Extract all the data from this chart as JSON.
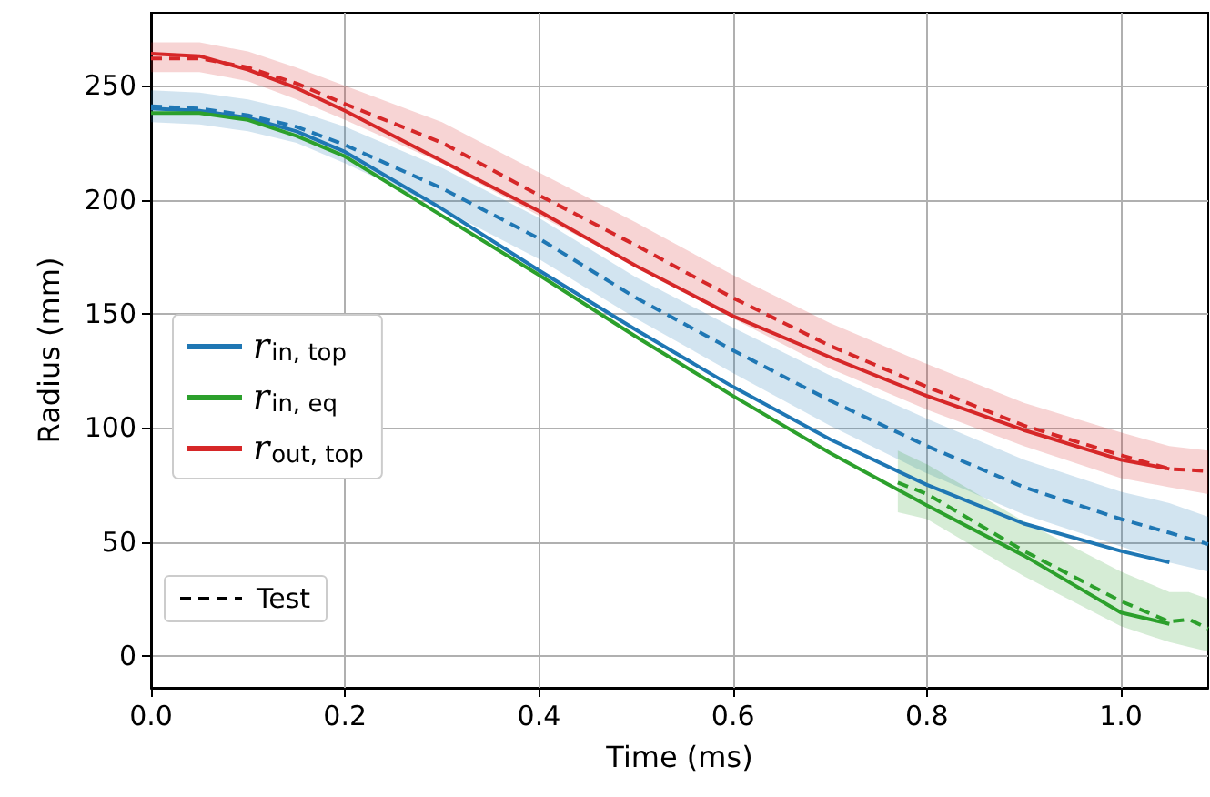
{
  "chart_data": {
    "type": "line",
    "xlabel": "Time (ms)",
    "ylabel": "Radius (mm)",
    "xlim": [
      0,
      1.09
    ],
    "ylim": [
      -14,
      282
    ],
    "xticks": [
      {
        "value": 0,
        "label": "0.0"
      },
      {
        "value": 0.2,
        "label": "0.2"
      },
      {
        "value": 0.4,
        "label": "0.4"
      },
      {
        "value": 0.6,
        "label": "0.6"
      },
      {
        "value": 0.8,
        "label": "0.8"
      },
      {
        "value": 1,
        "label": "1.0"
      }
    ],
    "yticks": [
      0,
      50,
      100,
      150,
      200,
      250
    ],
    "grid": true,
    "legend": "left",
    "annotations": [
      "Test"
    ],
    "series": [
      {
        "name": "r$_{in, top}$",
        "color": "#1f77b4",
        "line_style": "solid",
        "x": [
          0,
          0.05,
          0.1,
          0.15,
          0.2,
          0.3,
          0.4,
          0.5,
          0.6,
          0.7,
          0.8,
          0.9,
          1.0,
          1.05
        ],
        "values": [
          240,
          239,
          236,
          230,
          221,
          196,
          169,
          143,
          118,
          95,
          75,
          58,
          46,
          41
        ]
      },
      {
        "name": "r$_{in, eq}$",
        "color": "#2ca02c",
        "line_style": "solid",
        "x": [
          0,
          0.05,
          0.1,
          0.15,
          0.2,
          0.3,
          0.4,
          0.5,
          0.6,
          0.7,
          0.8,
          0.9,
          1.0,
          1.05
        ],
        "values": [
          238,
          238,
          235,
          228,
          219,
          193,
          167,
          140,
          114,
          89,
          66,
          44,
          19,
          14
        ]
      },
      {
        "name": "r$_{out, top}$",
        "color": "#d62728",
        "line_style": "solid",
        "x": [
          0,
          0.05,
          0.1,
          0.15,
          0.2,
          0.3,
          0.4,
          0.5,
          0.6,
          0.7,
          0.8,
          0.9,
          1.0,
          1.05
        ],
        "values": [
          264,
          263,
          257,
          249,
          239,
          217,
          195,
          171,
          149,
          131,
          114,
          99,
          86,
          82
        ]
      },
      {
        "color": "#1f77b4",
        "line_style": "dashed",
        "x": [
          0,
          0.05,
          0.1,
          0.15,
          0.2,
          0.3,
          0.4,
          0.5,
          0.6,
          0.7,
          0.8,
          0.9,
          1.0,
          1.05,
          1.09
        ],
        "values": [
          241,
          240,
          237,
          232,
          224,
          205,
          183,
          157,
          134,
          112,
          92,
          74,
          60,
          54,
          49
        ],
        "lower": [
          234,
          233,
          230,
          225,
          216,
          196,
          174,
          148,
          124,
          101,
          80,
          62,
          48,
          41,
          37
        ],
        "upper": [
          248,
          247,
          244,
          239,
          232,
          214,
          192,
          166,
          144,
          123,
          104,
          86,
          72,
          67,
          61
        ]
      },
      {
        "color": "#2ca02c",
        "line_style": "dashed",
        "x": [
          0.77,
          0.8,
          0.9,
          1.0,
          1.05,
          1.07,
          1.09
        ],
        "values": [
          76,
          71,
          46,
          24,
          15,
          16,
          12
        ],
        "lower": [
          63,
          60,
          35,
          13,
          6,
          4,
          2
        ],
        "upper": [
          90,
          84,
          59,
          37,
          28,
          28,
          25
        ]
      },
      {
        "color": "#d62728",
        "line_style": "dashed",
        "x": [
          0,
          0.05,
          0.1,
          0.15,
          0.2,
          0.3,
          0.4,
          0.5,
          0.6,
          0.7,
          0.8,
          0.9,
          1.0,
          1.05,
          1.09
        ],
        "values": [
          262,
          262,
          258,
          251,
          242,
          225,
          202,
          180,
          157,
          136,
          118,
          101,
          88,
          82,
          81
        ],
        "lower": [
          256,
          256,
          252,
          244,
          235,
          216,
          193,
          171,
          148,
          126,
          108,
          92,
          78,
          74,
          71
        ],
        "upper": [
          269,
          269,
          265,
          258,
          250,
          234,
          212,
          190,
          167,
          146,
          128,
          111,
          98,
          92,
          90
        ]
      }
    ]
  }
}
